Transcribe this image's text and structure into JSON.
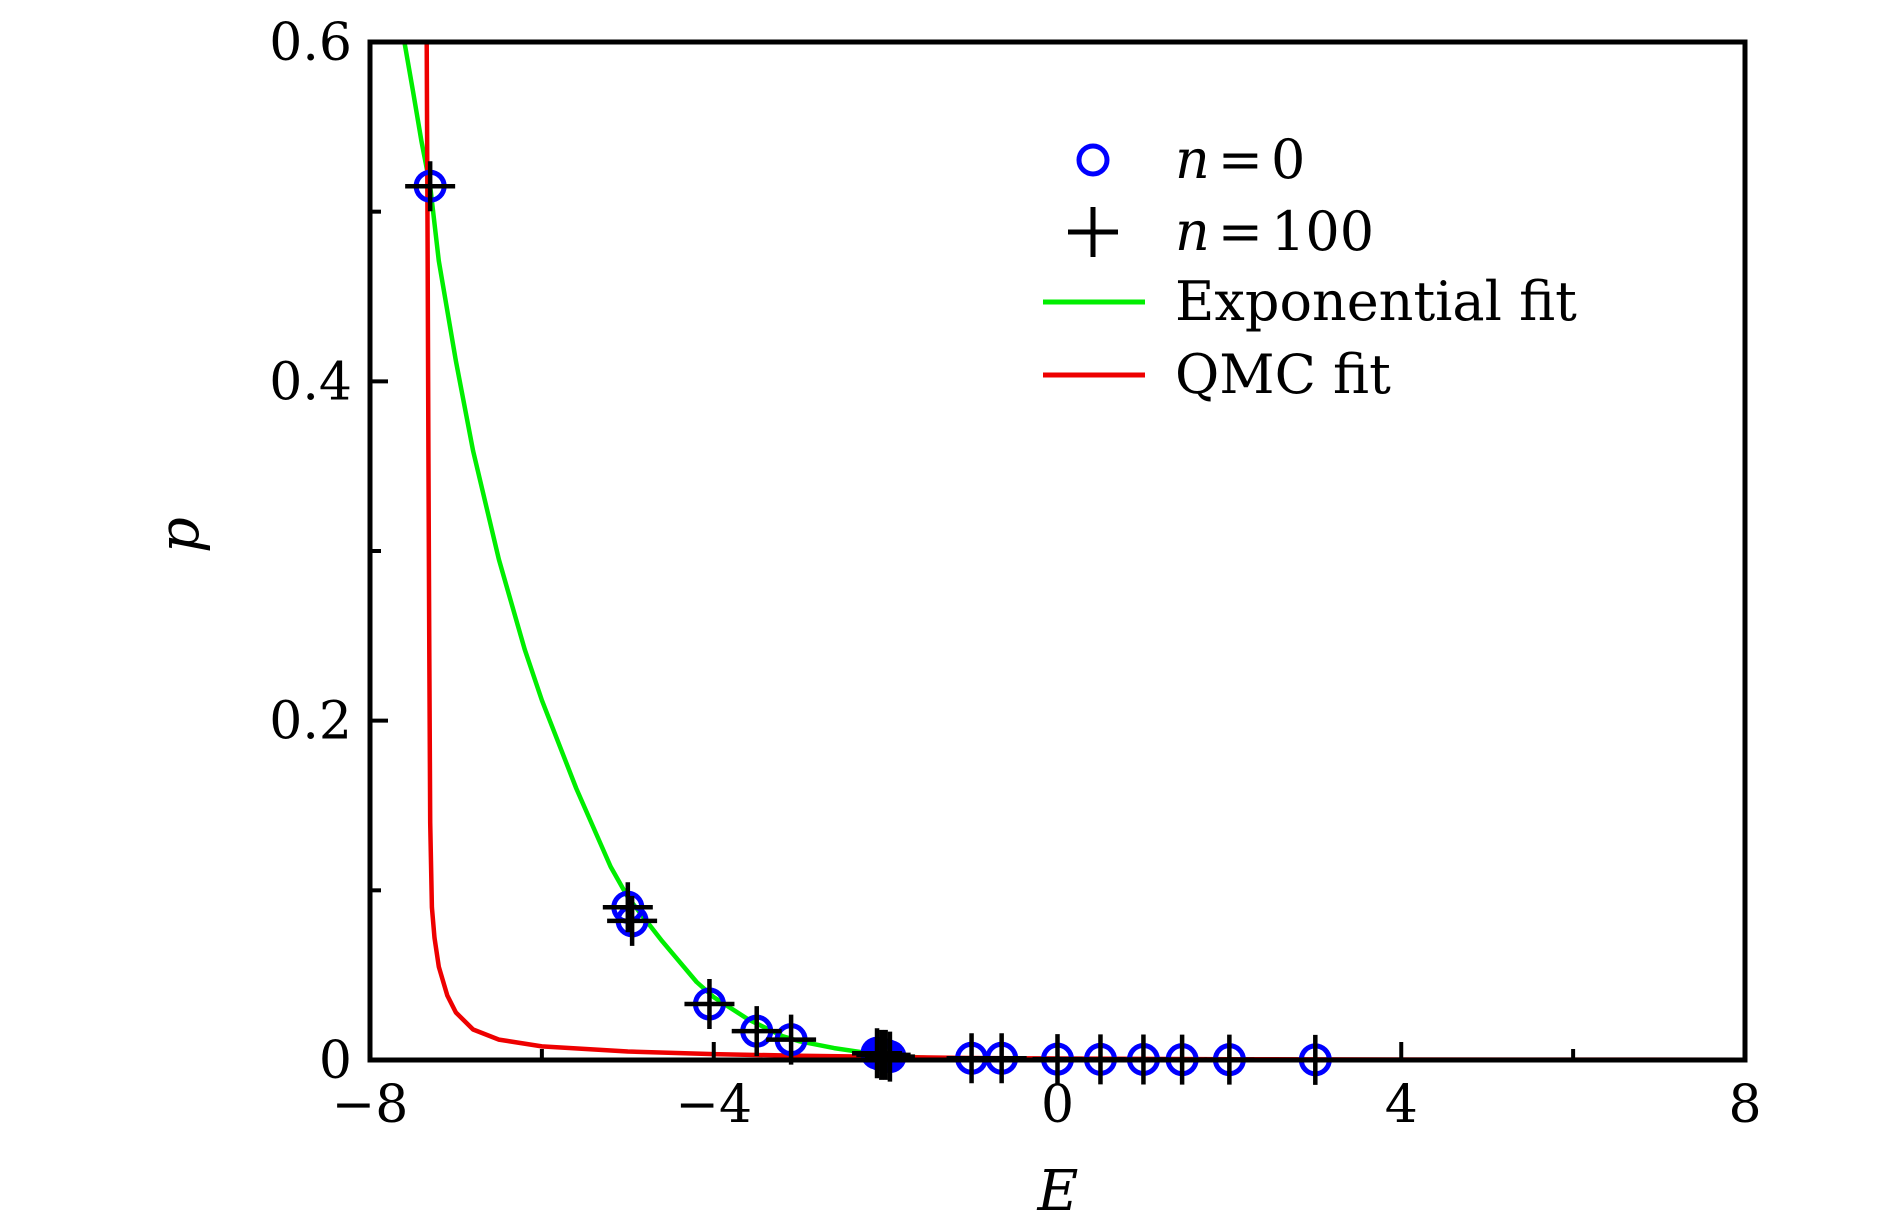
{
  "chart_data": {
    "type": "scatter",
    "xlabel": "E",
    "ylabel": "p",
    "xlim": [
      -8,
      8
    ],
    "ylim": [
      0,
      0.6
    ],
    "x_ticks": [
      -8,
      -4,
      0,
      4,
      8
    ],
    "x_tick_labels": [
      "−8",
      "−4",
      "0",
      "4",
      "8"
    ],
    "y_ticks": [
      0,
      0.2,
      0.4,
      0.6
    ],
    "y_tick_labels": [
      "0",
      "0.2",
      "0.4",
      "0.6"
    ],
    "grid": false,
    "legend_position": "top-right",
    "series": [
      {
        "name": "n = 0",
        "legend_var": "n",
        "legend_eq": "=",
        "legend_val": "0",
        "marker": "circle",
        "color": "#0000ff",
        "points": [
          [
            -7.3,
            0.515
          ],
          [
            -5.0,
            0.09
          ],
          [
            -4.95,
            0.082
          ],
          [
            -4.05,
            0.033
          ],
          [
            -3.5,
            0.017
          ],
          [
            -3.1,
            0.012
          ],
          [
            -2.1,
            0.004
          ],
          [
            -2.05,
            0.003
          ],
          [
            -2.0,
            0.003
          ],
          [
            -1.95,
            0.002
          ],
          [
            -1.0,
            0.001
          ],
          [
            -0.65,
            0.001
          ],
          [
            0.0,
            0.0005
          ],
          [
            0.5,
            0.0004
          ],
          [
            1.0,
            0.0003
          ],
          [
            1.45,
            0.0002
          ],
          [
            2.0,
            0.0002
          ],
          [
            3.0,
            0.0001
          ]
        ]
      },
      {
        "name": "n = 100",
        "legend_var": "n",
        "legend_eq": "=",
        "legend_val": "100",
        "marker": "plus",
        "color": "#000000",
        "points": [
          [
            -7.3,
            0.515
          ],
          [
            -5.0,
            0.09
          ],
          [
            -4.95,
            0.082
          ],
          [
            -4.05,
            0.033
          ],
          [
            -3.5,
            0.017
          ],
          [
            -3.1,
            0.012
          ],
          [
            -2.1,
            0.004
          ],
          [
            -2.05,
            0.003
          ],
          [
            -2.0,
            0.003
          ],
          [
            -1.95,
            0.002
          ],
          [
            -1.0,
            0.001
          ],
          [
            -0.65,
            0.001
          ],
          [
            0.0,
            0.0005
          ],
          [
            0.5,
            0.0004
          ],
          [
            1.0,
            0.0003
          ],
          [
            1.45,
            0.0002
          ],
          [
            2.0,
            0.0002
          ],
          [
            3.0,
            0.0001
          ]
        ]
      },
      {
        "name": "Exponential fit",
        "marker": "line",
        "color": "#00ee00",
        "x": [
          -7.6,
          -7.5,
          -7.4,
          -7.3,
          -7.2,
          -7.0,
          -6.8,
          -6.5,
          -6.2,
          -6.0,
          -5.6,
          -5.2,
          -5.0,
          -4.6,
          -4.2,
          -4.0,
          -3.6,
          -3.2,
          -3.0,
          -2.6,
          -2.2,
          -2.0,
          -1.6,
          -1.2,
          -1.0,
          0.0,
          2.0,
          4.0,
          8.0
        ],
        "y": [
          0.6,
          0.571,
          0.541,
          0.515,
          0.471,
          0.412,
          0.359,
          0.295,
          0.242,
          0.212,
          0.16,
          0.114,
          0.096,
          0.07,
          0.046,
          0.037,
          0.024,
          0.014,
          0.011,
          0.007,
          0.004,
          0.003,
          0.0015,
          0.0007,
          0.0005,
          0.0001,
          0.0,
          0.0,
          0.0
        ]
      },
      {
        "name": "QMC fit",
        "marker": "line",
        "color": "#ee0000",
        "x": [
          -7.34,
          -7.33,
          -7.32,
          -7.31,
          -7.3,
          -7.28,
          -7.25,
          -7.2,
          -7.1,
          -7.0,
          -6.8,
          -6.5,
          -6.0,
          -5.0,
          -4.0,
          -3.0,
          -2.0,
          -1.0,
          0.0,
          2.0,
          4.0,
          8.0
        ],
        "y": [
          0.6,
          0.48,
          0.36,
          0.24,
          0.14,
          0.09,
          0.072,
          0.055,
          0.038,
          0.028,
          0.018,
          0.012,
          0.008,
          0.005,
          0.0035,
          0.0025,
          0.0018,
          0.0012,
          0.0009,
          0.0005,
          0.0003,
          0.0002
        ]
      }
    ]
  }
}
